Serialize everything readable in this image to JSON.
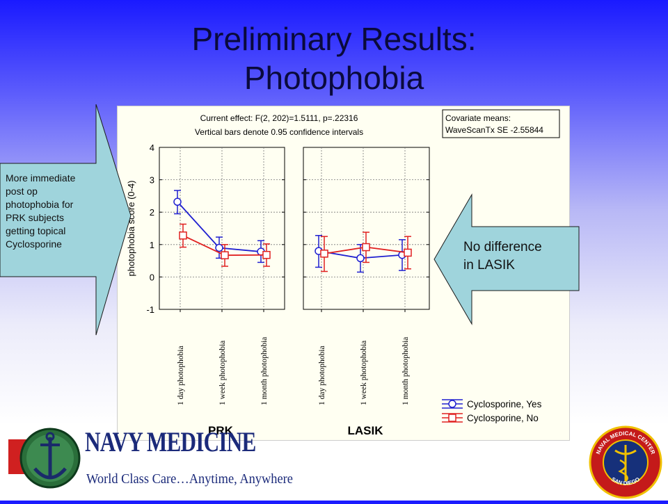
{
  "title_line1": "Preliminary Results:",
  "title_line2": "Photophobia",
  "chart_header": {
    "effect": "Current effect: F(2, 202)=1.5111, p=.22316",
    "bars": "Vertical bars denote 0.95 confidence intervals"
  },
  "covariate": {
    "line1": "Covariate means:",
    "line2": "WaveScanTx SE -2.55844"
  },
  "callout_left": [
    "More immediate",
    "post op",
    "photophobia for",
    "PRK subjects",
    "getting topical",
    "Cyclosporine"
  ],
  "callout_right": [
    "No difference",
    "in LASIK"
  ],
  "logo": {
    "brand": "NAVY MEDICINE",
    "tagline": "World Class Care…Anytime, Anywhere",
    "seal_top": "NAVAL MEDICAL CENTER",
    "seal_bottom": "SAN DIEGO"
  },
  "chart_data": {
    "type": "line",
    "ylabel": "photophobia score (0-4)",
    "ylim": [
      -1,
      4
    ],
    "yticks": [
      -1,
      0,
      1,
      2,
      3,
      4
    ],
    "categories": [
      "1 day photophobia",
      "1 week photophobia",
      "1 month photophobia"
    ],
    "panels": [
      {
        "name": "PRK",
        "series": [
          {
            "name": "Cyclosporine, Yes",
            "color": "#1f1fd0",
            "marker": "circle",
            "values": [
              2.32,
              0.9,
              0.78
            ],
            "lower": [
              1.95,
              0.58,
              0.45
            ],
            "upper": [
              2.67,
              1.23,
              1.12
            ]
          },
          {
            "name": "Cyclosporine, No",
            "color": "#e02020",
            "marker": "square",
            "values": [
              1.28,
              0.67,
              0.68
            ],
            "lower": [
              0.92,
              0.33,
              0.33
            ],
            "upper": [
              1.63,
              1.0,
              1.02
            ]
          }
        ]
      },
      {
        "name": "LASIK",
        "series": [
          {
            "name": "Cyclosporine, Yes",
            "color": "#1f1fd0",
            "marker": "circle",
            "values": [
              0.8,
              0.58,
              0.68
            ],
            "lower": [
              0.3,
              0.15,
              0.2
            ],
            "upper": [
              1.28,
              1.0,
              1.15
            ]
          },
          {
            "name": "Cyclosporine, No",
            "color": "#e02020",
            "marker": "square",
            "values": [
              0.72,
              0.92,
              0.75
            ],
            "lower": [
              0.17,
              0.45,
              0.25
            ],
            "upper": [
              1.25,
              1.38,
              1.25
            ]
          }
        ]
      }
    ],
    "legend": [
      "Cyclosporine, Yes",
      "Cyclosporine, No"
    ],
    "legend_position": "bottom-right",
    "grid": true
  }
}
